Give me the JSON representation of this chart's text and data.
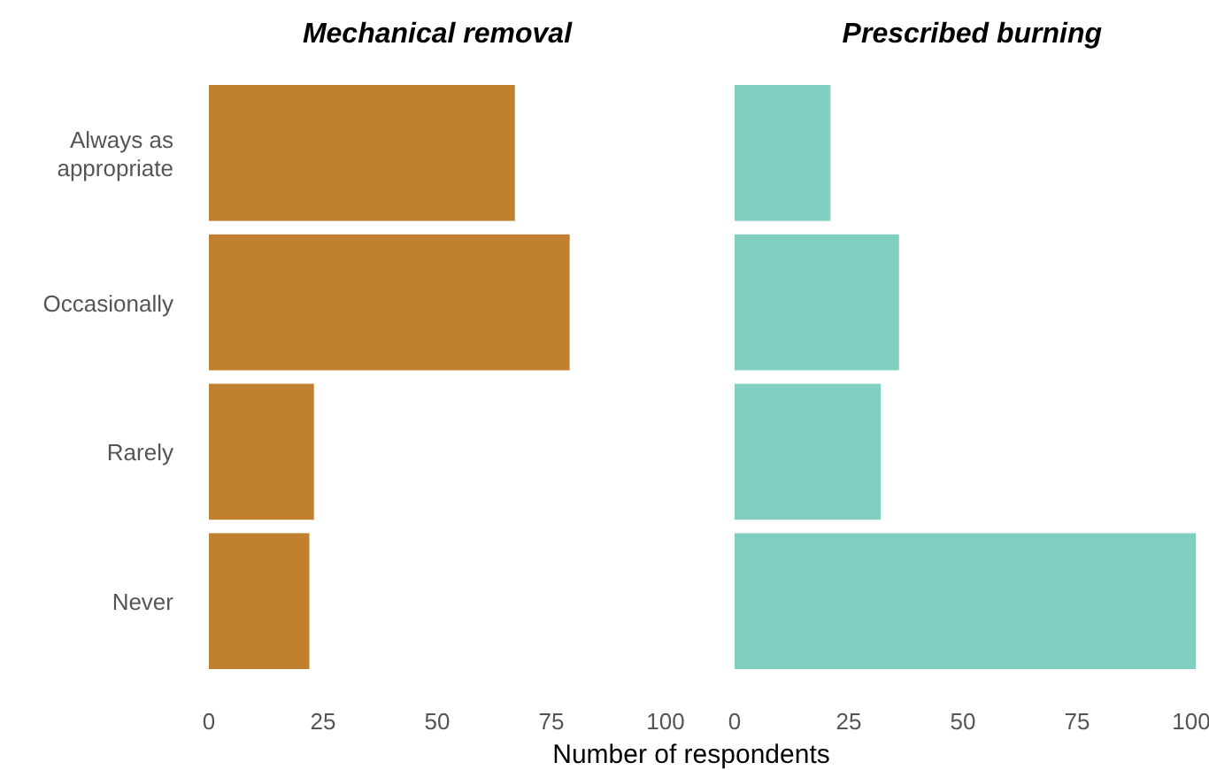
{
  "chart_data": [
    {
      "type": "bar",
      "orientation": "horizontal",
      "title": "Mechanical removal",
      "xlabel": "Number of respondents",
      "categories": [
        "Always as appropriate",
        "Occasionally",
        "Rarely",
        "Never"
      ],
      "values": [
        67,
        79,
        23,
        22
      ],
      "color": "#c08030",
      "xlim": [
        0,
        100
      ],
      "xticks": [
        0,
        25,
        50,
        75,
        100
      ],
      "grid": false
    },
    {
      "type": "bar",
      "orientation": "horizontal",
      "title": "Prescribed burning",
      "categories": [
        null,
        null,
        null,
        null
      ],
      "values": [
        21,
        36,
        32,
        101
      ],
      "color": "#80cfc1",
      "xlim": [
        0,
        104
      ],
      "xticks": [
        0,
        25,
        50,
        75,
        100
      ],
      "grid": false,
      "tick_labels": "x"
    }
  ]
}
